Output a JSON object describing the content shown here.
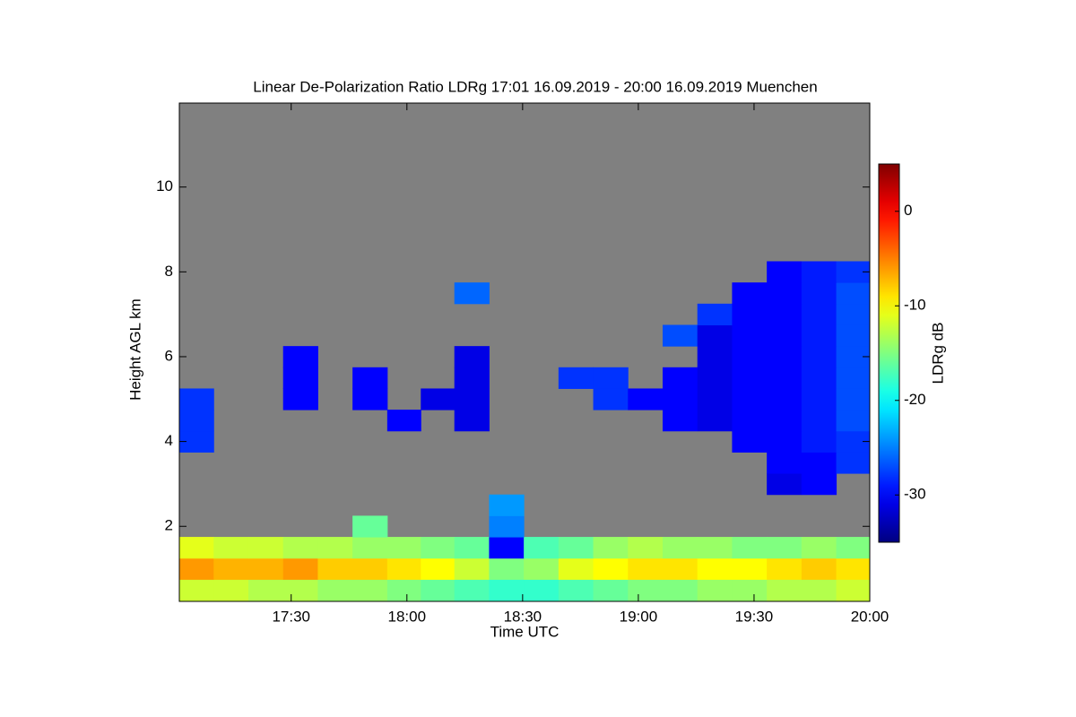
{
  "chart_data": {
    "type": "heatmap",
    "title": "Linear De-Polarization Ratio LDRg   17:01 16.09.2019 - 20:00 16.09.2019 Muenchen",
    "xlabel": "Time UTC",
    "ylabel": "Height AGL km",
    "colorbar_label": "LDRg dB",
    "colormap": "jet",
    "nodata_color": "#808080",
    "xlim": [
      17.0167,
      20.0
    ],
    "ylim": [
      0.23,
      11.98
    ],
    "xticks": [
      {
        "value": 17.5,
        "label": "17:30"
      },
      {
        "value": 18.0,
        "label": "18:00"
      },
      {
        "value": 18.5,
        "label": "18:30"
      },
      {
        "value": 19.0,
        "label": "19:00"
      },
      {
        "value": 19.5,
        "label": "19:30"
      },
      {
        "value": 20.0,
        "label": "20:00"
      }
    ],
    "yticks": [
      2,
      4,
      6,
      8,
      10
    ],
    "clim": [
      -35,
      5
    ],
    "cticks": [
      -30,
      -20,
      -10,
      0
    ],
    "x": [
      17.09,
      17.24,
      17.39,
      17.54,
      17.69,
      17.84,
      17.99,
      18.13,
      18.28,
      18.43,
      18.58,
      18.73,
      18.88,
      19.03,
      19.18,
      19.33,
      19.48,
      19.63,
      19.78,
      19.93
    ],
    "y": [
      0.5,
      1.0,
      1.5,
      2.0,
      2.5,
      3.0,
      3.5,
      4.0,
      4.5,
      5.0,
      5.5,
      6.0,
      6.5,
      7.0,
      7.5,
      8.0,
      8.5
    ],
    "z": [
      [
        -12,
        -12,
        -13,
        -13,
        -14,
        -14,
        -15,
        -16,
        -17,
        -18,
        -18,
        -17,
        -16,
        -15,
        -15,
        -14,
        -14,
        -13,
        -13,
        -12
      ],
      [
        -6,
        -7,
        -7,
        -6,
        -8,
        -8,
        -9,
        -10,
        -12,
        -15,
        -14,
        -11,
        -10,
        -9,
        -9,
        -10,
        -10,
        -9,
        -8,
        -9
      ],
      [
        -11,
        -12,
        -12,
        -13,
        -13,
        -14,
        -14,
        -15,
        -16,
        -30,
        -17,
        -16,
        -14,
        -13,
        -14,
        -14,
        -15,
        -15,
        -14,
        -15
      ],
      [
        null,
        null,
        null,
        null,
        null,
        -16,
        null,
        null,
        null,
        -25,
        null,
        null,
        null,
        null,
        null,
        null,
        null,
        null,
        null,
        null
      ],
      [
        null,
        null,
        null,
        null,
        null,
        null,
        null,
        null,
        null,
        -24,
        null,
        null,
        null,
        null,
        null,
        null,
        null,
        null,
        null,
        null
      ],
      [
        null,
        null,
        null,
        null,
        null,
        null,
        null,
        null,
        null,
        null,
        null,
        null,
        null,
        null,
        null,
        null,
        null,
        -31,
        -30,
        null
      ],
      [
        null,
        null,
        null,
        null,
        null,
        null,
        null,
        null,
        null,
        null,
        null,
        null,
        null,
        null,
        null,
        null,
        null,
        -30,
        -30,
        -28
      ],
      [
        -28,
        null,
        null,
        null,
        null,
        null,
        null,
        null,
        null,
        null,
        null,
        null,
        null,
        null,
        null,
        null,
        -30,
        -30,
        -29,
        -28
      ],
      [
        -28,
        null,
        null,
        null,
        null,
        null,
        -30,
        null,
        -31,
        null,
        null,
        null,
        null,
        null,
        -30,
        -31,
        -30,
        -30,
        -29,
        -27
      ],
      [
        -28,
        null,
        null,
        -30,
        null,
        -30,
        null,
        -31,
        -31,
        null,
        null,
        null,
        -28,
        -30,
        -30,
        -31,
        -30,
        -30,
        -29,
        -27
      ],
      [
        null,
        null,
        null,
        -30,
        null,
        -30,
        null,
        null,
        -31,
        null,
        null,
        -28,
        -28,
        null,
        -30,
        -31,
        -30,
        -30,
        -29,
        -27
      ],
      [
        null,
        null,
        null,
        -30,
        null,
        null,
        null,
        null,
        -31,
        null,
        null,
        null,
        null,
        null,
        null,
        -31,
        -30,
        -30,
        -29,
        -27
      ],
      [
        null,
        null,
        null,
        null,
        null,
        null,
        null,
        null,
        null,
        null,
        null,
        null,
        null,
        null,
        -27,
        -31,
        -30,
        -30,
        -29,
        -27
      ],
      [
        null,
        null,
        null,
        null,
        null,
        null,
        null,
        null,
        null,
        null,
        null,
        null,
        null,
        null,
        null,
        -28,
        -30,
        -30,
        -29,
        -27
      ],
      [
        null,
        null,
        null,
        null,
        null,
        null,
        null,
        null,
        -26,
        null,
        null,
        null,
        null,
        null,
        null,
        null,
        -30,
        -30,
        -29,
        -27
      ],
      [
        null,
        null,
        null,
        null,
        null,
        null,
        null,
        null,
        null,
        null,
        null,
        null,
        null,
        null,
        null,
        null,
        null,
        -30,
        -29,
        -28
      ],
      [
        null,
        null,
        null,
        null,
        null,
        null,
        null,
        null,
        null,
        null,
        null,
        null,
        null,
        null,
        null,
        null,
        null,
        null,
        null,
        null
      ]
    ]
  }
}
